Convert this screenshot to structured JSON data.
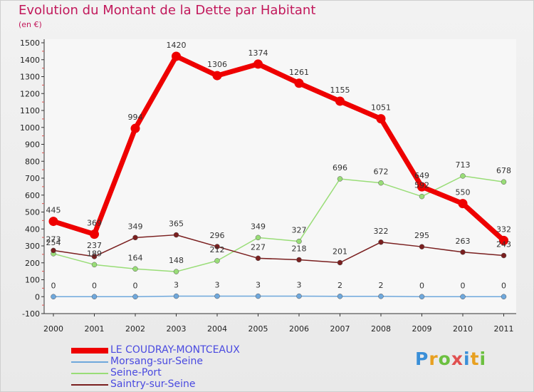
{
  "chart_data": {
    "type": "line",
    "title": "Evolution du Montant de la Dette par Habitant",
    "subtitle": "(en €)",
    "xlabel": "",
    "ylabel": "",
    "ylim": [
      -100,
      1500
    ],
    "yticks": [
      "-100",
      "0",
      "100",
      "200",
      "300",
      "400",
      "500",
      "600",
      "700",
      "800",
      "900",
      "1000",
      "1100",
      "1200",
      "1300",
      "1400",
      "1500"
    ],
    "x": [
      "2000",
      "2001",
      "2002",
      "2003",
      "2004",
      "2005",
      "2006",
      "2007",
      "2008",
      "2009",
      "2010",
      "2011"
    ],
    "grid": false,
    "legend_position": "bottom-left",
    "series": [
      {
        "name": "LE COUDRAY-MONTCEAUX",
        "color": "#ee0000",
        "values": [
          445,
          369,
          994,
          1420,
          1306,
          1374,
          1261,
          1155,
          1051,
          649,
          550,
          332
        ],
        "labels": [
          "445",
          "369",
          "994",
          "1420",
          "1306",
          "1374",
          "1261",
          "1155",
          "1051",
          "649",
          "550",
          "332"
        ]
      },
      {
        "name": "Morsang-sur-Seine",
        "color": "#6fa8dc",
        "values": [
          0,
          0,
          0,
          3,
          3,
          3,
          3,
          2,
          2,
          0,
          0,
          0
        ],
        "labels": [
          "0",
          "0",
          "0",
          "3",
          "3",
          "3",
          "3",
          "2",
          "2",
          "0",
          "0",
          "0"
        ]
      },
      {
        "name": "Seine-Port",
        "color": "#99dd77",
        "values": [
          254,
          189,
          164,
          148,
          212,
          349,
          327,
          696,
          672,
          592,
          713,
          678
        ],
        "labels": [
          "254",
          "189",
          "164",
          "148",
          "212",
          "349",
          "327",
          "696",
          "672",
          "592",
          "713",
          "678"
        ]
      },
      {
        "name": "Saintry-sur-Seine",
        "color": "#7a1f1f",
        "values": [
          273,
          237,
          349,
          365,
          296,
          227,
          218,
          201,
          322,
          295,
          263,
          243
        ],
        "labels": [
          "273",
          "237",
          "349",
          "365",
          "296",
          "227",
          "218",
          "201",
          "322",
          "295",
          "263",
          "243"
        ]
      }
    ]
  },
  "logo_text": "Proxiti"
}
